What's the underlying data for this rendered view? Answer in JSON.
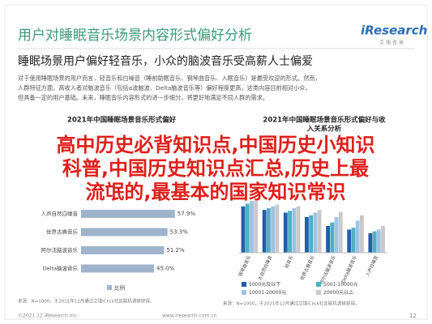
{
  "header": {
    "title": "用户对睡眠音乐场景内容形式偏好分析",
    "logo": "iResearch",
    "logo_sub": "艾 瑞 咨 询"
  },
  "subtitle": "睡眠场景用户偏好轻音乐，小众的脑波音乐受高薪人士偏爱",
  "body": {
    "lines": [
      "对于使用睡眠场景的用户而言，轻音乐和白噪音（睡前助眠音乐、钢琴曲音乐、入眠音乐）是最受欢迎的形式。然而，",
      "人群特征方面，高收入者对脑波音乐（包括α波脑波、Delta脑波音乐等）偏好程度更高，这类内容目前相对小众，",
      "但具备一定的用户基础。未来，睡眠音乐内容形式的进一步细分，将更好地满足不同人群的需求。"
    ]
  },
  "overlay": {
    "lines": [
      "高中历史必背知识点,中国历史小知识",
      "科普,中国历史知识点汇总,历史上最",
      "流氓的,最基本的国家知识常识"
    ]
  },
  "chart_data": [
    {
      "type": "hbar",
      "title": "2021年中国睡眠场景音乐形式偏好",
      "categories": [
        "人声自然白噪音",
        "世界古典音乐",
        "阿尔法脑波音乐",
        "Delta脑波音乐"
      ],
      "values": [
        57.9,
        53.3,
        51.2,
        45.0
      ],
      "value_labels": [
        "57.9%",
        "53.3%",
        "51.2%",
        "45.0%"
      ],
      "color": "#9fb4cc",
      "legend": "比例",
      "source": "来源：N=1000，于2021年12月通过艾瑞iClick社区联机调研获得。"
    },
    {
      "type": "grouped-bar",
      "title": [
        "2021年中国睡眠场景音乐形式偏好与收",
        "入关系分析"
      ],
      "categories": [
        "钢琴曲音乐",
        "大自然白噪音",
        "轻音乐",
        "世界古典音乐",
        "阿尔法脑波音乐",
        "Delta脑波音乐",
        "人声白噪音"
      ],
      "series": [
        {
          "name": "5000元及以下",
          "color": "#1f5fa8",
          "values": [
            52,
            48,
            45,
            40,
            30,
            26,
            22
          ]
        },
        {
          "name": "5001-10000元",
          "color": "#4fb0c6",
          "values": [
            55,
            50,
            47,
            42,
            34,
            28,
            24
          ]
        },
        {
          "name": "10001-20000元",
          "color": "#9dc3e6",
          "values": [
            58,
            52,
            50,
            45,
            40,
            36,
            26
          ]
        },
        {
          "name": "20000元以上",
          "color": "#c9c9c9",
          "values": [
            60,
            54,
            52,
            48,
            46,
            42,
            30
          ]
        }
      ],
      "source": "来源：N=1000，于2021年12月通过艾瑞iClick社区联机调研获得。"
    }
  ],
  "footer": {
    "copyright": "©2021.12 iResearch Inc.",
    "url": "www.iresearch.com.cn",
    "page": "12"
  }
}
